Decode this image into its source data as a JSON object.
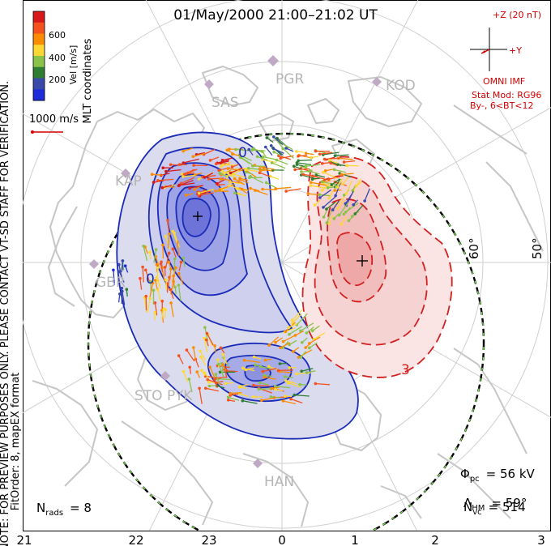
{
  "title": "01/May/2000 21:00–21:02 UT",
  "colorbar": {
    "label": "Vel [m/s]",
    "ticks": [
      "600",
      "400",
      "200"
    ],
    "colors": [
      "#d7191c",
      "#f4511e",
      "#fb8c00",
      "#fdd835",
      "#8bc34a",
      "#2e7d32",
      "#3949ab",
      "#1e2bd9"
    ]
  },
  "coords_label": "MLT coordinates",
  "scale_arrow_label": "1000 m/s",
  "imf": {
    "z_label": "+Z (20 nT)",
    "y_label": "+Y",
    "caption": "OMNI IMF"
  },
  "model": {
    "line1": "Stat Mod: RG96",
    "line2": "By-, 6<BT<12"
  },
  "side_note_1": "NOTE: FOR PREVIEW PURPOSES ONLY. PLEASE CONTACT VT-SD STAFF FOR VERIFICATION.",
  "side_note_2": "FitOrder: 8,  mapEX format",
  "stations": [
    "PGR",
    "SAS",
    "KOD",
    "KAP",
    "GBR",
    "STO",
    "PYK",
    "HAN"
  ],
  "lat_labels": [
    "60°",
    "50°"
  ],
  "contour_labels": [
    "0",
    "0",
    "3"
  ],
  "mlt_ticks": [
    "21",
    "22",
    "23",
    "0",
    "1",
    "2",
    "3"
  ],
  "stats": {
    "phi_sym": "Φ",
    "phi_sub": "pc",
    "phi_val": "= 56 kV",
    "lam_sym": "Λ",
    "lam_sub": "HM",
    "lam_val": "= 59°",
    "nvc_sym": "N",
    "nvc_sub": "vc",
    "nvc_val": "= 514",
    "nrad_sym": "N",
    "nrad_sub": "rads",
    "nrad_val": "= 8"
  },
  "colors": {
    "negative_contour": "#1a2bb8",
    "positive_contour": "#d32020",
    "grid": "#c8c8c8",
    "coast": "#c9c9c9",
    "imf_red": "#d40000"
  }
}
